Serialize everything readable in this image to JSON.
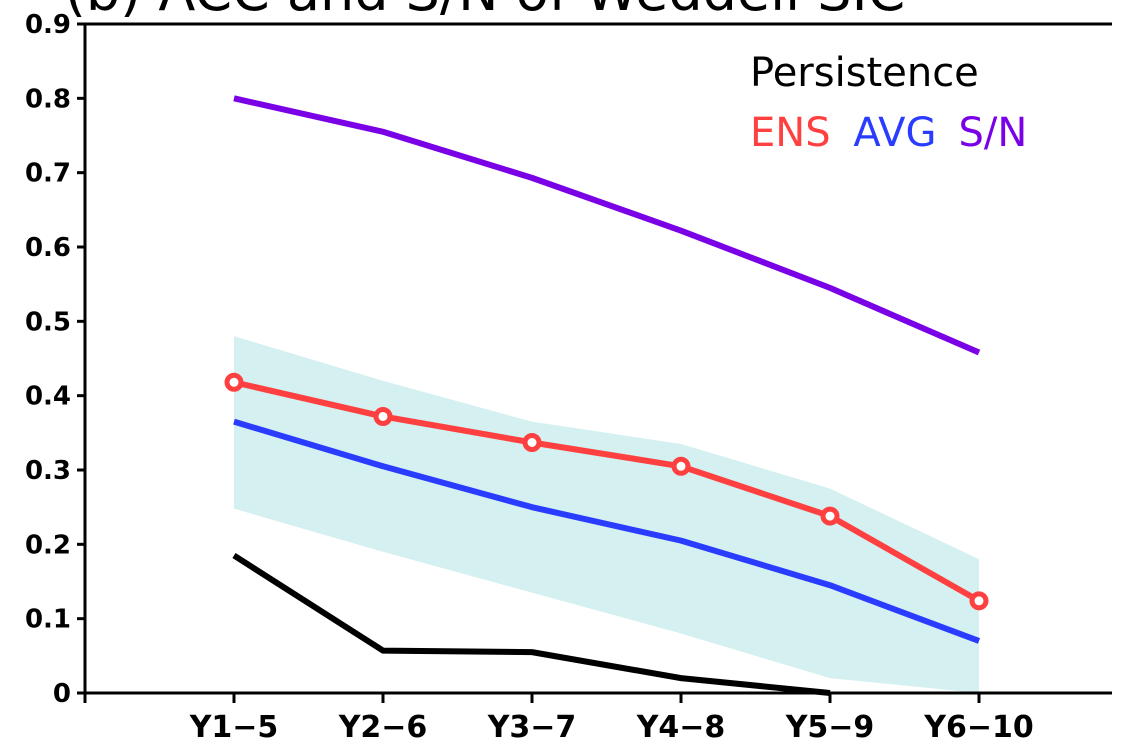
{
  "chart_data": {
    "type": "line",
    "title": "(b) ACC and S/N of Weddell SIC",
    "categories": [
      "Y1−5",
      "Y2−6",
      "Y3−7",
      "Y4−8",
      "Y5−9",
      "Y6−10"
    ],
    "ylim": [
      0,
      0.9
    ],
    "yticks": [
      0,
      0.1,
      0.2,
      0.3,
      0.4,
      0.5,
      0.6,
      0.7,
      0.8,
      0.9
    ],
    "band": {
      "color": "#d4f0f0",
      "upper": [
        0.48,
        0.42,
        0.365,
        0.335,
        0.275,
        0.18
      ],
      "lower": [
        0.248,
        0.19,
        0.135,
        0.08,
        0.02,
        0
      ]
    },
    "series": [
      {
        "name": "Persistence",
        "color": "#000000",
        "values": [
          0.185,
          0.057,
          0.055,
          0.02,
          0,
          null
        ]
      },
      {
        "name": "ENS",
        "color": "#ff4040",
        "markers": true,
        "values": [
          0.418,
          0.372,
          0.337,
          0.305,
          0.238,
          0.124
        ]
      },
      {
        "name": "AVG",
        "color": "#2a3cff",
        "values": [
          0.365,
          0.305,
          0.25,
          0.205,
          0.145,
          0.07
        ]
      },
      {
        "name": "S/N",
        "color": "#7a00e6",
        "values": [
          0.8,
          0.755,
          0.693,
          0.622,
          0.545,
          0.458
        ]
      }
    ]
  }
}
